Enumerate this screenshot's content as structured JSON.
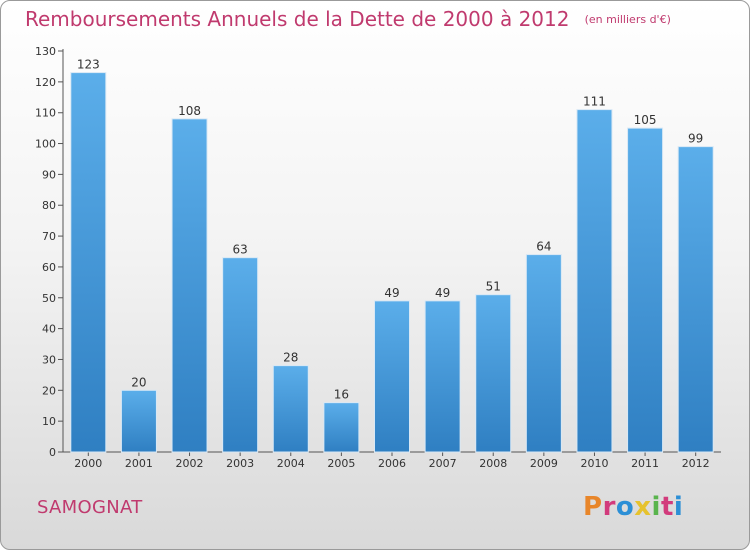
{
  "chart_data": {
    "type": "bar",
    "title": "Remboursements Annuels de la Dette de 2000 à 2012",
    "unit_note": "(en milliers d'€)",
    "categories": [
      "2000",
      "2001",
      "2002",
      "2003",
      "2004",
      "2005",
      "2006",
      "2007",
      "2008",
      "2009",
      "2010",
      "2011",
      "2012"
    ],
    "values": [
      123,
      20,
      108,
      63,
      28,
      16,
      49,
      49,
      51,
      64,
      111,
      105,
      99
    ],
    "ylim": [
      0,
      130
    ],
    "ytick_step": 10,
    "grid": false,
    "bar_color_top": "#5baeea",
    "bar_color_bottom": "#2f7fc2"
  },
  "footer": {
    "town": "SAMOGNAT",
    "logo_text": "Proxiti",
    "logo_colors": [
      "#e8862a",
      "#d23b7c",
      "#2c8fd6",
      "#e6c22e",
      "#59b44d",
      "#d23b7c",
      "#2c8fd6"
    ]
  },
  "colors": {
    "accent": "#c03a6e",
    "axis": "#555555"
  }
}
